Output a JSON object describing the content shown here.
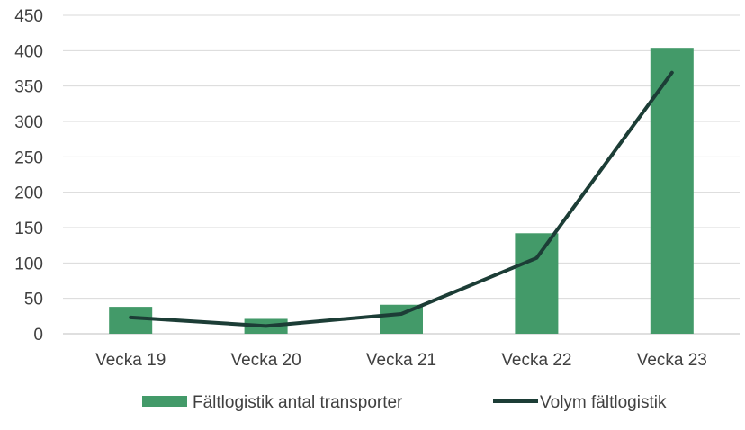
{
  "chart_data": {
    "type": "bar",
    "categories": [
      "Vecka 19",
      "Vecka 20",
      "Vecka 21",
      "Vecka 22",
      "Vecka 23"
    ],
    "series": [
      {
        "name": "Fältlogistik antal transporter",
        "type": "bar",
        "color": "#439a69",
        "values": [
          38,
          21,
          41,
          142,
          404
        ]
      },
      {
        "name": "Volym fältlogistik",
        "type": "line",
        "color": "#1c3d36",
        "values": [
          23,
          11,
          28,
          107,
          369
        ]
      }
    ],
    "ylim": [
      0,
      450
    ],
    "yticks": [
      0,
      50,
      100,
      150,
      200,
      250,
      300,
      350,
      400,
      450
    ],
    "grid": true,
    "legend": "bottom",
    "title": "",
    "xlabel": "",
    "ylabel": ""
  }
}
